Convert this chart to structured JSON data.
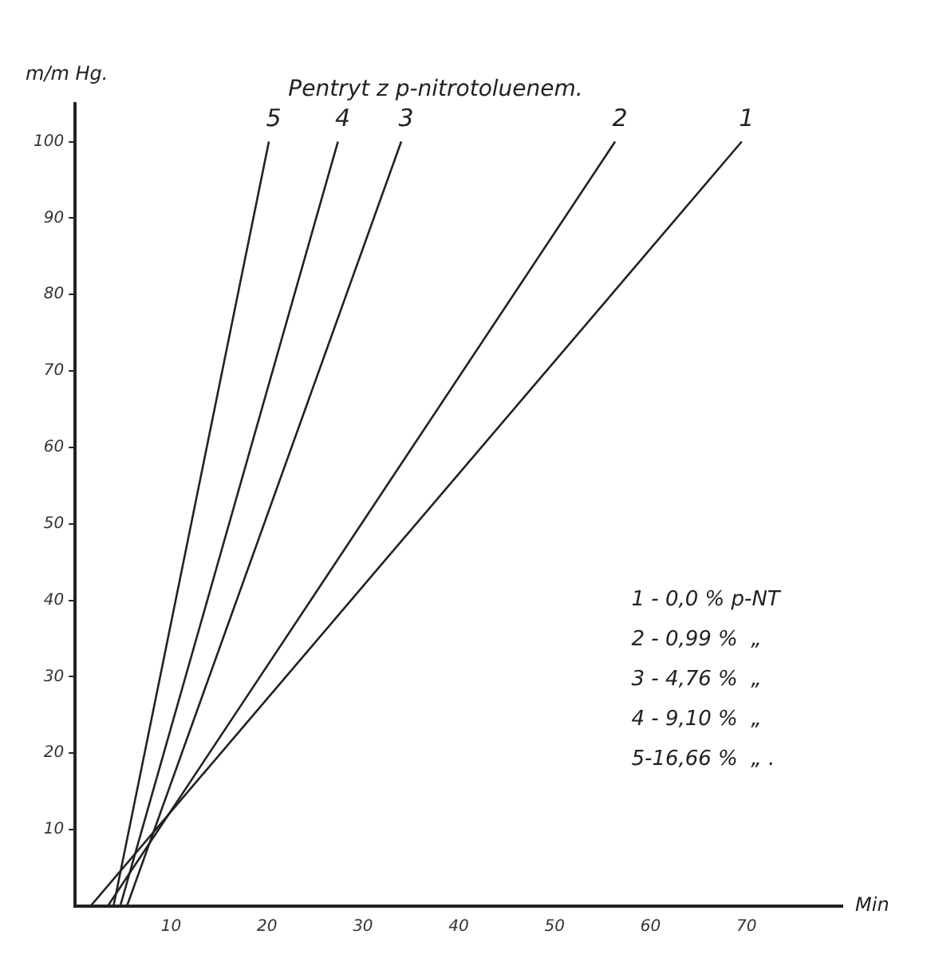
{
  "chart_data": {
    "type": "line",
    "title": "Pentryt z p-nitrotoluenem.",
    "xlabel": "Min",
    "ylabel": "m/m Hg.",
    "xlim": [
      0,
      80
    ],
    "ylim": [
      0,
      105
    ],
    "xticks": [
      10,
      20,
      30,
      40,
      50,
      60,
      70
    ],
    "yticks": [
      10,
      20,
      30,
      40,
      50,
      60,
      70,
      80,
      90,
      100
    ],
    "grid": false,
    "legend": false,
    "marker": "none",
    "line_style": "solid",
    "series": [
      {
        "name": "1",
        "color": "#222222",
        "x": [
          1.6,
          69.5
        ],
        "values": [
          0,
          100
        ]
      },
      {
        "name": "2",
        "color": "#222222",
        "x": [
          3.4,
          56.3
        ],
        "values": [
          0,
          100
        ]
      },
      {
        "name": "3",
        "color": "#222222",
        "x": [
          5.4,
          34
        ],
        "values": [
          0,
          100
        ]
      },
      {
        "name": "4",
        "color": "#222222",
        "x": [
          4.7,
          27.4
        ],
        "values": [
          0,
          100
        ]
      },
      {
        "name": "5",
        "color": "#222222",
        "x": [
          4,
          20.2
        ],
        "values": [
          0,
          100
        ]
      }
    ],
    "annotations": [
      "1 - 0,0 % p-NT",
      "2 - 0,99 %  „",
      "3 - 4,76 %  „",
      "4 - 9,10 %  „",
      "5-16,66 %  „ ."
    ]
  }
}
